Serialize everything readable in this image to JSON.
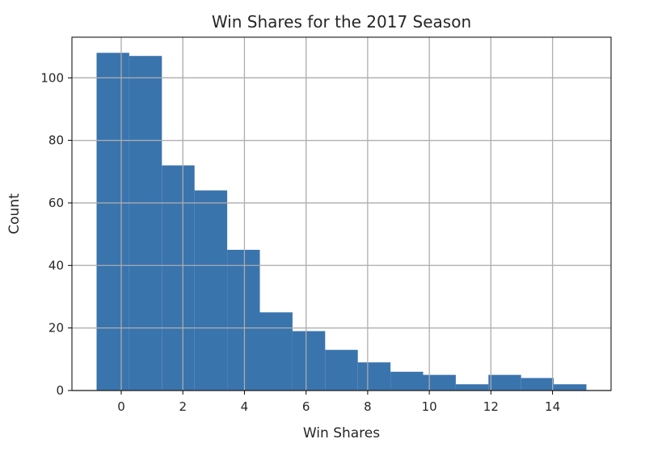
{
  "chart_data": {
    "type": "bar",
    "title": "Win Shares for the 2017 Season",
    "xlabel": "Win Shares",
    "ylabel": "Count",
    "bin_edges": [
      -0.8,
      0.26,
      1.32,
      2.38,
      3.44,
      4.5,
      5.56,
      6.62,
      7.68,
      8.74,
      9.8,
      10.86,
      11.92,
      12.98,
      14.04,
      15.1
    ],
    "values": [
      108,
      107,
      72,
      64,
      45,
      25,
      19,
      13,
      9,
      6,
      5,
      2,
      5,
      4,
      2
    ],
    "xlim": [
      -1.6,
      15.9
    ],
    "ylim": [
      0,
      113
    ],
    "xticks": [
      0,
      2,
      4,
      6,
      8,
      10,
      12,
      14
    ],
    "yticks": [
      0,
      20,
      40,
      60,
      80,
      100
    ],
    "grid": true,
    "bar_color": "#3a74ad",
    "grid_color": "#b0b0b0"
  }
}
